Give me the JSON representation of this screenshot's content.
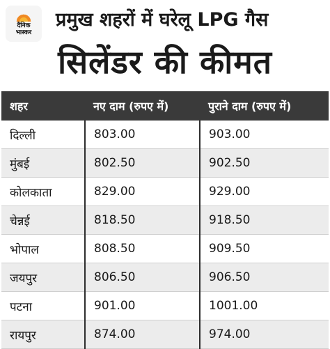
{
  "logo": {
    "line1": "दैनिक",
    "line2": "भास्कर"
  },
  "subtitle": "प्रमुख शहरों में घरेलू LPG गैस",
  "title": "सिलेंडर की कीमत",
  "table": {
    "headers": [
      "शहर",
      "नए दाम (रुपए में)",
      "पुराने दाम (रुपए में)"
    ],
    "rows": [
      [
        "दिल्ली",
        "803.00",
        "903.00"
      ],
      [
        "मुंबई",
        "802.50",
        "902.50"
      ],
      [
        "कोलकाता",
        "829.00",
        "929.00"
      ],
      [
        "चेन्नई",
        "818.50",
        "918.50"
      ],
      [
        "भोपाल",
        "808.50",
        "909.50"
      ],
      [
        "जयपुर",
        "806.50",
        "906.50"
      ],
      [
        "पटना",
        "901.00",
        "1001.00"
      ],
      [
        "रायपुर",
        "874.00",
        "974.00"
      ]
    ]
  },
  "colors": {
    "header_bg": "#3a3a3a",
    "alt_row": "#ececec",
    "logo_sun": "#f08a24"
  }
}
